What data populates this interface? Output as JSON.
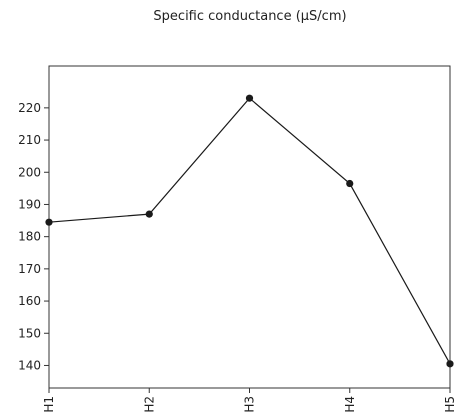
{
  "chart_data": {
    "type": "line",
    "title": "Specific conductance (µS/cm)",
    "xlabel": "",
    "ylabel": "",
    "categories": [
      "H1",
      "H2",
      "H3",
      "H4",
      "H5"
    ],
    "series": [
      {
        "values": [
          184.5,
          187,
          223,
          196.5,
          140.5
        ],
        "color": "#1a1a1a"
      }
    ],
    "ylim": [
      133,
      233
    ],
    "yticks": [
      140,
      150,
      160,
      170,
      180,
      190,
      200,
      210,
      220
    ],
    "grid": false,
    "legend": "none"
  }
}
